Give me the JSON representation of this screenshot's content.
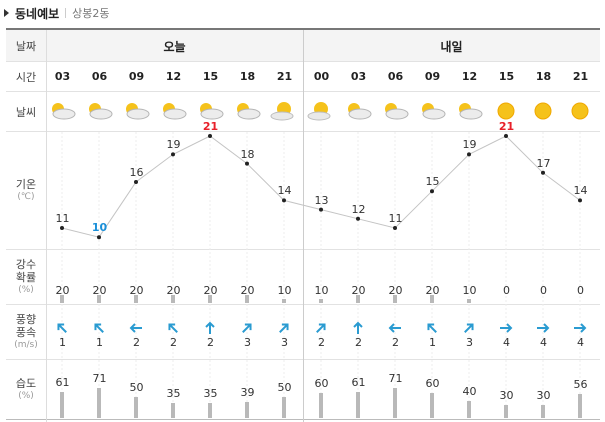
{
  "header": {
    "title": "동네예보",
    "location": "상봉2동"
  },
  "labels": {
    "date": "날짜",
    "time": "시간",
    "weather": "날씨",
    "temp": "기온",
    "temp_unit": "(℃)",
    "rain_l1": "강수",
    "rain_l2": "확률",
    "rain_unit": "(%)",
    "wind_l1": "풍향",
    "wind_l2": "풍속",
    "wind_unit": "(m/s)",
    "hum": "습도",
    "hum_unit": "(%)"
  },
  "days": [
    {
      "label": "오늘"
    },
    {
      "label": "내일"
    }
  ],
  "colors": {
    "max": "#e8202a",
    "min": "#1a8fd8",
    "arrow": "#2a9bd1"
  },
  "hours": [
    {
      "time": "03",
      "icon": "cloudy-sun",
      "temp": 11,
      "rain": 20,
      "wind_dir": "northwest",
      "wind": 1,
      "hum": 61
    },
    {
      "time": "06",
      "icon": "cloudy-sun",
      "temp": 10,
      "tag": "min",
      "rain": 20,
      "wind_dir": "northwest",
      "wind": 1,
      "hum": 71
    },
    {
      "time": "09",
      "icon": "cloudy-sun",
      "temp": 16,
      "rain": 20,
      "wind_dir": "west",
      "wind": 2,
      "hum": 50
    },
    {
      "time": "12",
      "icon": "cloudy-sun",
      "temp": 19,
      "rain": 20,
      "wind_dir": "northwest",
      "wind": 2,
      "hum": 35
    },
    {
      "time": "15",
      "icon": "cloudy-sun",
      "temp": 21,
      "tag": "max",
      "rain": 20,
      "wind_dir": "north",
      "wind": 2,
      "hum": 35
    },
    {
      "time": "18",
      "icon": "cloudy-sun",
      "temp": 18,
      "rain": 20,
      "wind_dir": "northeast",
      "wind": 3,
      "hum": 39
    },
    {
      "time": "21",
      "icon": "partly-sunny",
      "temp": 14,
      "rain": 10,
      "wind_dir": "northeast",
      "wind": 3,
      "hum": 50
    },
    {
      "time": "00",
      "icon": "partly-sunny",
      "temp": 13,
      "rain": 10,
      "wind_dir": "northeast",
      "wind": 2,
      "hum": 60
    },
    {
      "time": "03",
      "icon": "cloudy-sun",
      "temp": 12,
      "rain": 20,
      "wind_dir": "north",
      "wind": 2,
      "hum": 61
    },
    {
      "time": "06",
      "icon": "cloudy-sun",
      "temp": 11,
      "rain": 20,
      "wind_dir": "west",
      "wind": 2,
      "hum": 71
    },
    {
      "time": "09",
      "icon": "cloudy-sun",
      "temp": 15,
      "rain": 20,
      "wind_dir": "northwest",
      "wind": 1,
      "hum": 60
    },
    {
      "time": "12",
      "icon": "cloudy-sun",
      "temp": 19,
      "rain": 10,
      "wind_dir": "northeast",
      "wind": 3,
      "hum": 40
    },
    {
      "time": "15",
      "icon": "sunny",
      "temp": 21,
      "tag": "max",
      "rain": 0,
      "wind_dir": "east",
      "wind": 4,
      "hum": 30
    },
    {
      "time": "18",
      "icon": "sunny",
      "temp": 17,
      "rain": 0,
      "wind_dir": "east",
      "wind": 4,
      "hum": 30
    },
    {
      "time": "21",
      "icon": "sunny",
      "temp": 14,
      "rain": 0,
      "wind_dir": "east",
      "wind": 4,
      "hum": 56
    }
  ]
}
